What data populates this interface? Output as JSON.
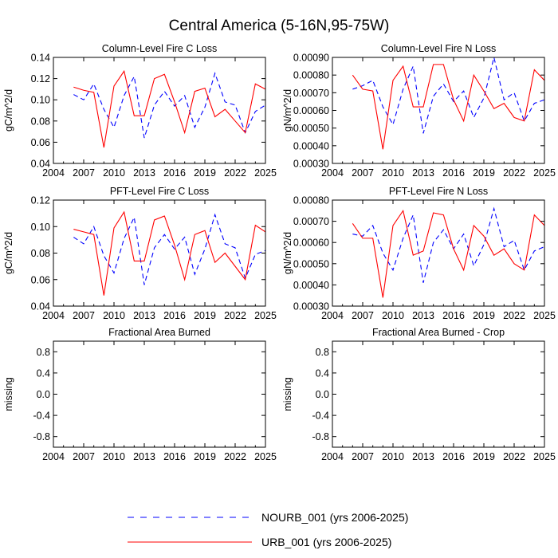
{
  "figure": {
    "title": "Central America (5-16N,95-75W)"
  },
  "colors": {
    "nourb": "#0000ff",
    "urb": "#ff0000",
    "axis": "#000000"
  },
  "legend": {
    "items": [
      {
        "key": "nourb",
        "label": "NOURB_001 (yrs 2006-2025)",
        "dash": "dashed"
      },
      {
        "key": "urb",
        "label": "URB_001 (yrs 2006-2025)",
        "dash": "solid"
      }
    ]
  },
  "chart_data": [
    {
      "type": "line",
      "title": "Column-Level Fire C Loss",
      "ylabel": "gC/m^2/d",
      "xlabel": "",
      "xlim": [
        2004,
        2025
      ],
      "xticks": [
        2004,
        2007,
        2010,
        2013,
        2016,
        2019,
        2022,
        2025
      ],
      "ylim": [
        0.04,
        0.14
      ],
      "yticks": [
        0.04,
        0.06,
        0.08,
        0.1,
        0.12,
        0.14
      ],
      "ytick_labels": [
        "0.04",
        "0.06",
        "0.08",
        "0.10",
        "0.12",
        "0.14"
      ],
      "x": [
        2006,
        2007,
        2008,
        2009,
        2010,
        2011,
        2012,
        2013,
        2014,
        2015,
        2016,
        2017,
        2018,
        2019,
        2020,
        2021,
        2022,
        2023,
        2024,
        2025
      ],
      "series": [
        {
          "name": "NOURB_001",
          "key": "nourb",
          "values": [
            0.105,
            0.1,
            0.115,
            0.091,
            0.074,
            0.104,
            0.122,
            0.064,
            0.095,
            0.108,
            0.094,
            0.104,
            0.074,
            0.093,
            0.125,
            0.098,
            0.095,
            0.069,
            0.089,
            0.095
          ]
        },
        {
          "name": "URB_001",
          "key": "urb",
          "values": [
            0.112,
            0.109,
            0.107,
            0.055,
            0.113,
            0.127,
            0.085,
            0.085,
            0.12,
            0.124,
            0.098,
            0.069,
            0.108,
            0.111,
            0.084,
            0.091,
            0.08,
            0.069,
            0.115,
            0.11
          ]
        }
      ]
    },
    {
      "type": "line",
      "title": "Column-Level Fire N Loss",
      "ylabel": "gN/m^2/d",
      "xlabel": "",
      "xlim": [
        2004,
        2025
      ],
      "xticks": [
        2004,
        2007,
        2010,
        2013,
        2016,
        2019,
        2022,
        2025
      ],
      "ylim": [
        0.0003,
        0.0009
      ],
      "yticks": [
        0.0003,
        0.0004,
        0.0005,
        0.0006,
        0.0007,
        0.0008,
        0.0009
      ],
      "ytick_labels": [
        "0.00030",
        "0.00040",
        "0.00050",
        "0.00060",
        "0.00070",
        "0.00080",
        "0.00090"
      ],
      "x": [
        2006,
        2007,
        2008,
        2009,
        2010,
        2011,
        2012,
        2013,
        2014,
        2015,
        2016,
        2017,
        2018,
        2019,
        2020,
        2021,
        2022,
        2023,
        2024,
        2025
      ],
      "series": [
        {
          "name": "NOURB_001",
          "key": "nourb",
          "values": [
            0.00072,
            0.00074,
            0.00077,
            0.00062,
            0.00052,
            0.00072,
            0.00085,
            0.00047,
            0.00068,
            0.00075,
            0.00065,
            0.00071,
            0.00056,
            0.00067,
            0.0009,
            0.00066,
            0.0007,
            0.00054,
            0.00064,
            0.00066
          ]
        },
        {
          "name": "URB_001",
          "key": "urb",
          "values": [
            0.0008,
            0.00072,
            0.00071,
            0.00038,
            0.00077,
            0.00085,
            0.00062,
            0.00062,
            0.00086,
            0.00086,
            0.00066,
            0.00054,
            0.0008,
            0.00071,
            0.00061,
            0.00064,
            0.00056,
            0.00054,
            0.00083,
            0.00077
          ]
        }
      ]
    },
    {
      "type": "line",
      "title": "PFT-Level Fire C Loss",
      "ylabel": "gC/m^2/d",
      "xlabel": "",
      "xlim": [
        2004,
        2025
      ],
      "xticks": [
        2004,
        2007,
        2010,
        2013,
        2016,
        2019,
        2022,
        2025
      ],
      "ylim": [
        0.04,
        0.12
      ],
      "yticks": [
        0.04,
        0.06,
        0.08,
        0.1,
        0.12
      ],
      "ytick_labels": [
        "0.04",
        "0.06",
        "0.08",
        "0.10",
        "0.12"
      ],
      "x": [
        2006,
        2007,
        2008,
        2009,
        2010,
        2011,
        2012,
        2013,
        2014,
        2015,
        2016,
        2017,
        2018,
        2019,
        2020,
        2021,
        2022,
        2023,
        2024,
        2025
      ],
      "series": [
        {
          "name": "NOURB_001",
          "key": "nourb",
          "values": [
            0.092,
            0.087,
            0.1,
            0.078,
            0.065,
            0.091,
            0.107,
            0.056,
            0.084,
            0.094,
            0.083,
            0.092,
            0.064,
            0.083,
            0.109,
            0.087,
            0.084,
            0.061,
            0.079,
            0.082
          ]
        },
        {
          "name": "URB_001",
          "key": "urb",
          "values": [
            0.098,
            0.096,
            0.094,
            0.048,
            0.099,
            0.111,
            0.074,
            0.074,
            0.105,
            0.108,
            0.086,
            0.06,
            0.094,
            0.097,
            0.073,
            0.08,
            0.07,
            0.06,
            0.101,
            0.096
          ]
        }
      ]
    },
    {
      "type": "line",
      "title": "PFT-Level Fire N Loss",
      "ylabel": "gN/m^2/d",
      "xlabel": "",
      "xlim": [
        2004,
        2025
      ],
      "xticks": [
        2004,
        2007,
        2010,
        2013,
        2016,
        2019,
        2022,
        2025
      ],
      "ylim": [
        0.0003,
        0.0008
      ],
      "yticks": [
        0.0003,
        0.0004,
        0.0005,
        0.0006,
        0.0007,
        0.0008
      ],
      "ytick_labels": [
        "0.00030",
        "0.00040",
        "0.00050",
        "0.00060",
        "0.00070",
        "0.00080"
      ],
      "x": [
        2006,
        2007,
        2008,
        2009,
        2010,
        2011,
        2012,
        2013,
        2014,
        2015,
        2016,
        2017,
        2018,
        2019,
        2020,
        2021,
        2022,
        2023,
        2024,
        2025
      ],
      "series": [
        {
          "name": "NOURB_001",
          "key": "nourb",
          "values": [
            0.00064,
            0.00063,
            0.00068,
            0.00055,
            0.00047,
            0.00062,
            0.00073,
            0.00041,
            0.0006,
            0.00066,
            0.00057,
            0.00064,
            0.00049,
            0.00059,
            0.00076,
            0.00058,
            0.00061,
            0.00047,
            0.00056,
            0.00058
          ]
        },
        {
          "name": "URB_001",
          "key": "urb",
          "values": [
            0.00069,
            0.00062,
            0.00062,
            0.00034,
            0.00068,
            0.00075,
            0.00054,
            0.00056,
            0.00074,
            0.00073,
            0.00057,
            0.00047,
            0.00068,
            0.00063,
            0.00054,
            0.00057,
            0.0005,
            0.00047,
            0.00073,
            0.00068
          ]
        }
      ]
    },
    {
      "type": "line",
      "title": "Fractional Area Burned",
      "ylabel": "missing",
      "xlabel": "",
      "xlim": [
        2004,
        2025
      ],
      "xticks": [
        2004,
        2007,
        2010,
        2013,
        2016,
        2019,
        2022,
        2025
      ],
      "ylim": [
        -1.0,
        1.0
      ],
      "yticks": [
        -0.8,
        -0.4,
        0.0,
        0.4,
        0.8
      ],
      "ytick_labels": [
        "-0.8",
        "-0.4",
        "0.0",
        "0.4",
        "0.8"
      ],
      "x": [],
      "series": []
    },
    {
      "type": "line",
      "title": "Fractional Area Burned - Crop",
      "ylabel": "missing",
      "xlabel": "",
      "xlim": [
        2004,
        2025
      ],
      "xticks": [
        2004,
        2007,
        2010,
        2013,
        2016,
        2019,
        2022,
        2025
      ],
      "ylim": [
        -1.0,
        1.0
      ],
      "yticks": [
        -0.8,
        -0.4,
        0.0,
        0.4,
        0.8
      ],
      "ytick_labels": [
        "-0.8",
        "-0.4",
        "0.0",
        "0.4",
        "0.8"
      ],
      "x": [],
      "series": []
    }
  ]
}
